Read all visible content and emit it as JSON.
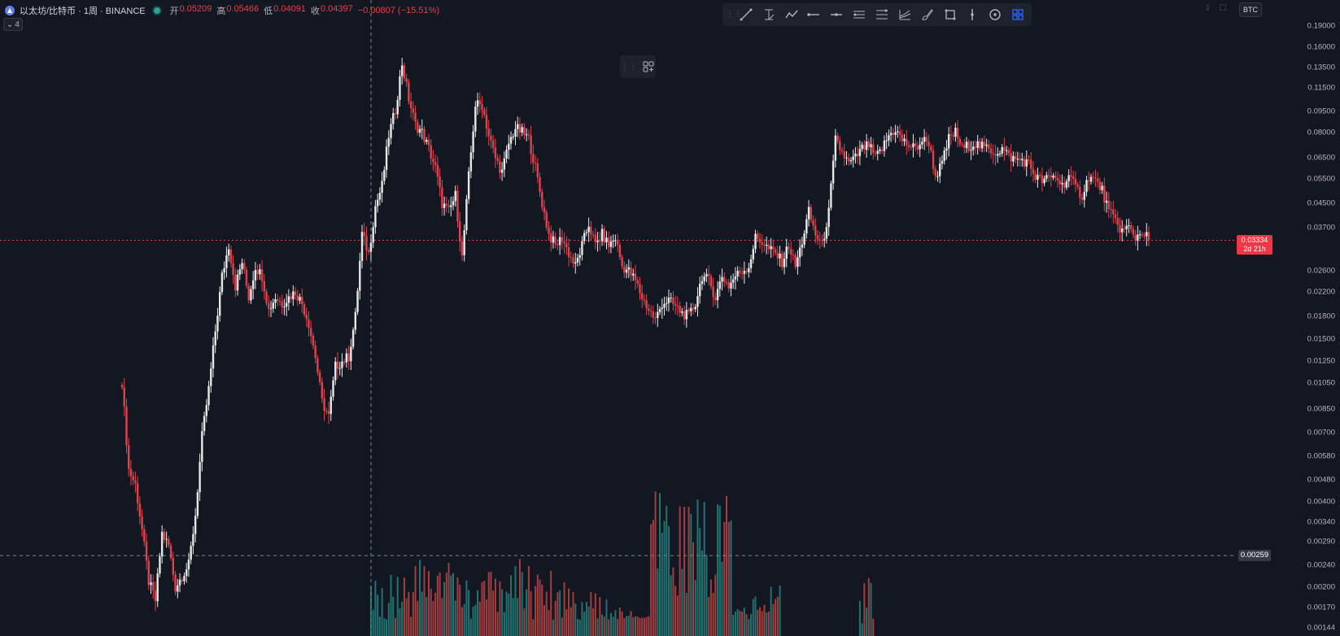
{
  "header": {
    "symbol_title": "以太坊/比特币 · 1周 · BINANCE",
    "ohlc": [
      {
        "label": "开",
        "value": "0.05209"
      },
      {
        "label": "高",
        "value": "0.05466"
      },
      {
        "label": "低",
        "value": "0.04091"
      },
      {
        "label": "收",
        "value": "0.04397"
      }
    ],
    "change": "−0.00807 (−15.51%)",
    "indicator_count": "4"
  },
  "toolbar": {
    "tools": [
      "trend-line-icon",
      "fib-retracement-icon",
      "polyline-icon",
      "ray-icon",
      "horizontal-line-icon",
      "parallel-channel-icon",
      "regression-icon",
      "fib-channel-icon",
      "brush-icon",
      "rectangle-icon",
      "vertical-line-icon",
      "circle-icon",
      "layout-grid-icon"
    ]
  },
  "right_axis": {
    "currency": "BTC",
    "labels": [
      "0.19000",
      "0.16000",
      "0.13500",
      "0.11500",
      "0.09500",
      "0.08000",
      "0.06500",
      "0.05500",
      "0.04500",
      "0.03700",
      "0.02600",
      "0.02200",
      "0.01800",
      "0.01500",
      "0.01250",
      "0.01050",
      "0.00850",
      "0.00700",
      "0.00580",
      "0.00480",
      "0.00400",
      "0.00340",
      "0.00290",
      "0.00240",
      "0.00200",
      "0.00170",
      "0.00144"
    ],
    "last_price": "0.03334",
    "countdown": "2d 21h",
    "crosshair_price": "0.00259"
  },
  "colors": {
    "background": "#131722",
    "up": "#e8e8e8",
    "down": "#e2414c",
    "volume_up": "#26a69a",
    "volume_down": "#ef5350",
    "grid": "#1e222d"
  },
  "chart_data": {
    "type": "candlestick",
    "scale": "log",
    "y_range": [
      0.00135,
      0.205
    ],
    "series_close_points": [
      [
        0,
        0.0106
      ],
      [
        3,
        0.0052
      ],
      [
        6,
        0.0046
      ],
      [
        9,
        0.0032
      ],
      [
        12,
        0.0021
      ],
      [
        15,
        0.0018
      ],
      [
        18,
        0.0031
      ],
      [
        21,
        0.0028
      ],
      [
        24,
        0.002
      ],
      [
        27,
        0.0022
      ],
      [
        30,
        0.0024
      ],
      [
        33,
        0.0036
      ],
      [
        36,
        0.0068
      ],
      [
        39,
        0.01
      ],
      [
        42,
        0.016
      ],
      [
        45,
        0.025
      ],
      [
        48,
        0.032
      ],
      [
        51,
        0.023
      ],
      [
        54,
        0.028
      ],
      [
        57,
        0.021
      ],
      [
        60,
        0.027
      ],
      [
        63,
        0.025
      ],
      [
        66,
        0.019
      ],
      [
        69,
        0.021
      ],
      [
        72,
        0.02
      ],
      [
        75,
        0.021
      ],
      [
        78,
        0.022
      ],
      [
        81,
        0.02
      ],
      [
        84,
        0.017
      ],
      [
        87,
        0.013
      ],
      [
        90,
        0.009
      ],
      [
        93,
        0.008
      ],
      [
        96,
        0.012
      ],
      [
        99,
        0.0125
      ],
      [
        102,
        0.013
      ],
      [
        105,
        0.018
      ],
      [
        108,
        0.035
      ],
      [
        111,
        0.03
      ],
      [
        114,
        0.044
      ],
      [
        117,
        0.052
      ],
      [
        120,
        0.078
      ],
      [
        123,
        0.096
      ],
      [
        126,
        0.14
      ],
      [
        129,
        0.105
      ],
      [
        132,
        0.085
      ],
      [
        135,
        0.08
      ],
      [
        138,
        0.07
      ],
      [
        141,
        0.06
      ],
      [
        144,
        0.045
      ],
      [
        147,
        0.042
      ],
      [
        150,
        0.048
      ],
      [
        153,
        0.029
      ],
      [
        156,
        0.056
      ],
      [
        159,
        0.1
      ],
      [
        162,
        0.1
      ],
      [
        165,
        0.078
      ],
      [
        168,
        0.065
      ],
      [
        171,
        0.058
      ],
      [
        174,
        0.073
      ],
      [
        177,
        0.083
      ],
      [
        180,
        0.08
      ],
      [
        183,
        0.076
      ],
      [
        186,
        0.06
      ],
      [
        189,
        0.045
      ],
      [
        192,
        0.035
      ],
      [
        195,
        0.032
      ],
      [
        198,
        0.034
      ],
      [
        201,
        0.03
      ],
      [
        204,
        0.027
      ],
      [
        207,
        0.032
      ],
      [
        210,
        0.038
      ],
      [
        213,
        0.032
      ],
      [
        216,
        0.035
      ],
      [
        219,
        0.032
      ],
      [
        222,
        0.034
      ],
      [
        225,
        0.027
      ],
      [
        228,
        0.026
      ],
      [
        231,
        0.024
      ],
      [
        234,
        0.021
      ],
      [
        237,
        0.019
      ],
      [
        240,
        0.0175
      ],
      [
        243,
        0.02
      ],
      [
        246,
        0.0205
      ],
      [
        249,
        0.0195
      ],
      [
        252,
        0.0185
      ],
      [
        255,
        0.018
      ],
      [
        258,
        0.02
      ],
      [
        261,
        0.025
      ],
      [
        264,
        0.024
      ],
      [
        267,
        0.021
      ],
      [
        270,
        0.025
      ],
      [
        273,
        0.023
      ],
      [
        276,
        0.025
      ],
      [
        279,
        0.026
      ],
      [
        282,
        0.027
      ],
      [
        285,
        0.034
      ],
      [
        288,
        0.033
      ],
      [
        291,
        0.031
      ],
      [
        294,
        0.03
      ],
      [
        297,
        0.028
      ],
      [
        300,
        0.032
      ],
      [
        303,
        0.027
      ],
      [
        306,
        0.033
      ],
      [
        309,
        0.042
      ],
      [
        312,
        0.035
      ],
      [
        315,
        0.032
      ],
      [
        318,
        0.042
      ],
      [
        321,
        0.075
      ],
      [
        324,
        0.068
      ],
      [
        327,
        0.062
      ],
      [
        330,
        0.065
      ],
      [
        333,
        0.07
      ],
      [
        336,
        0.072
      ],
      [
        339,
        0.065
      ],
      [
        342,
        0.07
      ],
      [
        345,
        0.078
      ],
      [
        348,
        0.082
      ],
      [
        351,
        0.075
      ],
      [
        354,
        0.072
      ],
      [
        357,
        0.07
      ],
      [
        360,
        0.075
      ],
      [
        363,
        0.074
      ],
      [
        366,
        0.056
      ],
      [
        369,
        0.062
      ],
      [
        372,
        0.076
      ],
      [
        375,
        0.08
      ],
      [
        378,
        0.07
      ],
      [
        381,
        0.072
      ],
      [
        384,
        0.073
      ],
      [
        387,
        0.071
      ],
      [
        390,
        0.07
      ],
      [
        393,
        0.068
      ],
      [
        396,
        0.07
      ],
      [
        399,
        0.066
      ],
      [
        402,
        0.064
      ],
      [
        405,
        0.064
      ],
      [
        408,
        0.062
      ],
      [
        411,
        0.056
      ],
      [
        414,
        0.054
      ],
      [
        417,
        0.055
      ],
      [
        420,
        0.056
      ],
      [
        423,
        0.052
      ],
      [
        426,
        0.056
      ],
      [
        429,
        0.051
      ],
      [
        432,
        0.048
      ],
      [
        435,
        0.056
      ],
      [
        438,
        0.054
      ],
      [
        441,
        0.05
      ],
      [
        444,
        0.042
      ],
      [
        447,
        0.039
      ],
      [
        450,
        0.036
      ],
      [
        453,
        0.037
      ],
      [
        456,
        0.034
      ],
      [
        459,
        0.036
      ],
      [
        462,
        0.0334
      ]
    ]
  }
}
